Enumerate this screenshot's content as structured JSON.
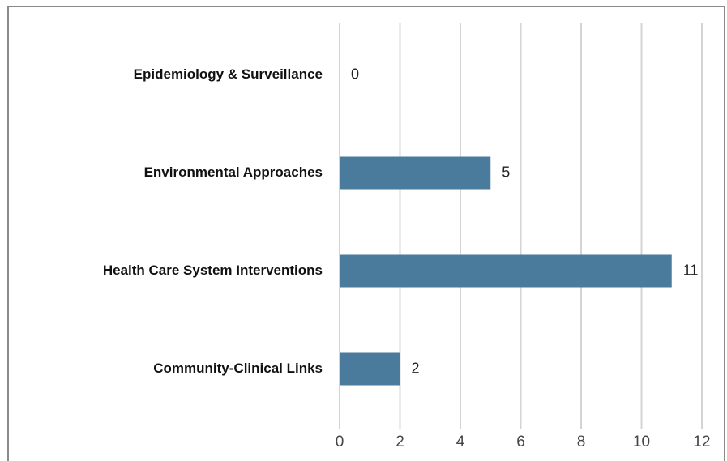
{
  "chart_data": {
    "type": "bar",
    "orientation": "horizontal",
    "categories": [
      "Epidemiology & Surveillance",
      "Environmental Approaches",
      "Health Care System Interventions",
      "Community-Clinical Links"
    ],
    "values": [
      0,
      5,
      11,
      2
    ],
    "color": "#4a7b9d",
    "xlim": [
      0,
      12
    ],
    "xticks": [
      0,
      2,
      4,
      6,
      8,
      10,
      12
    ],
    "grid": true
  }
}
